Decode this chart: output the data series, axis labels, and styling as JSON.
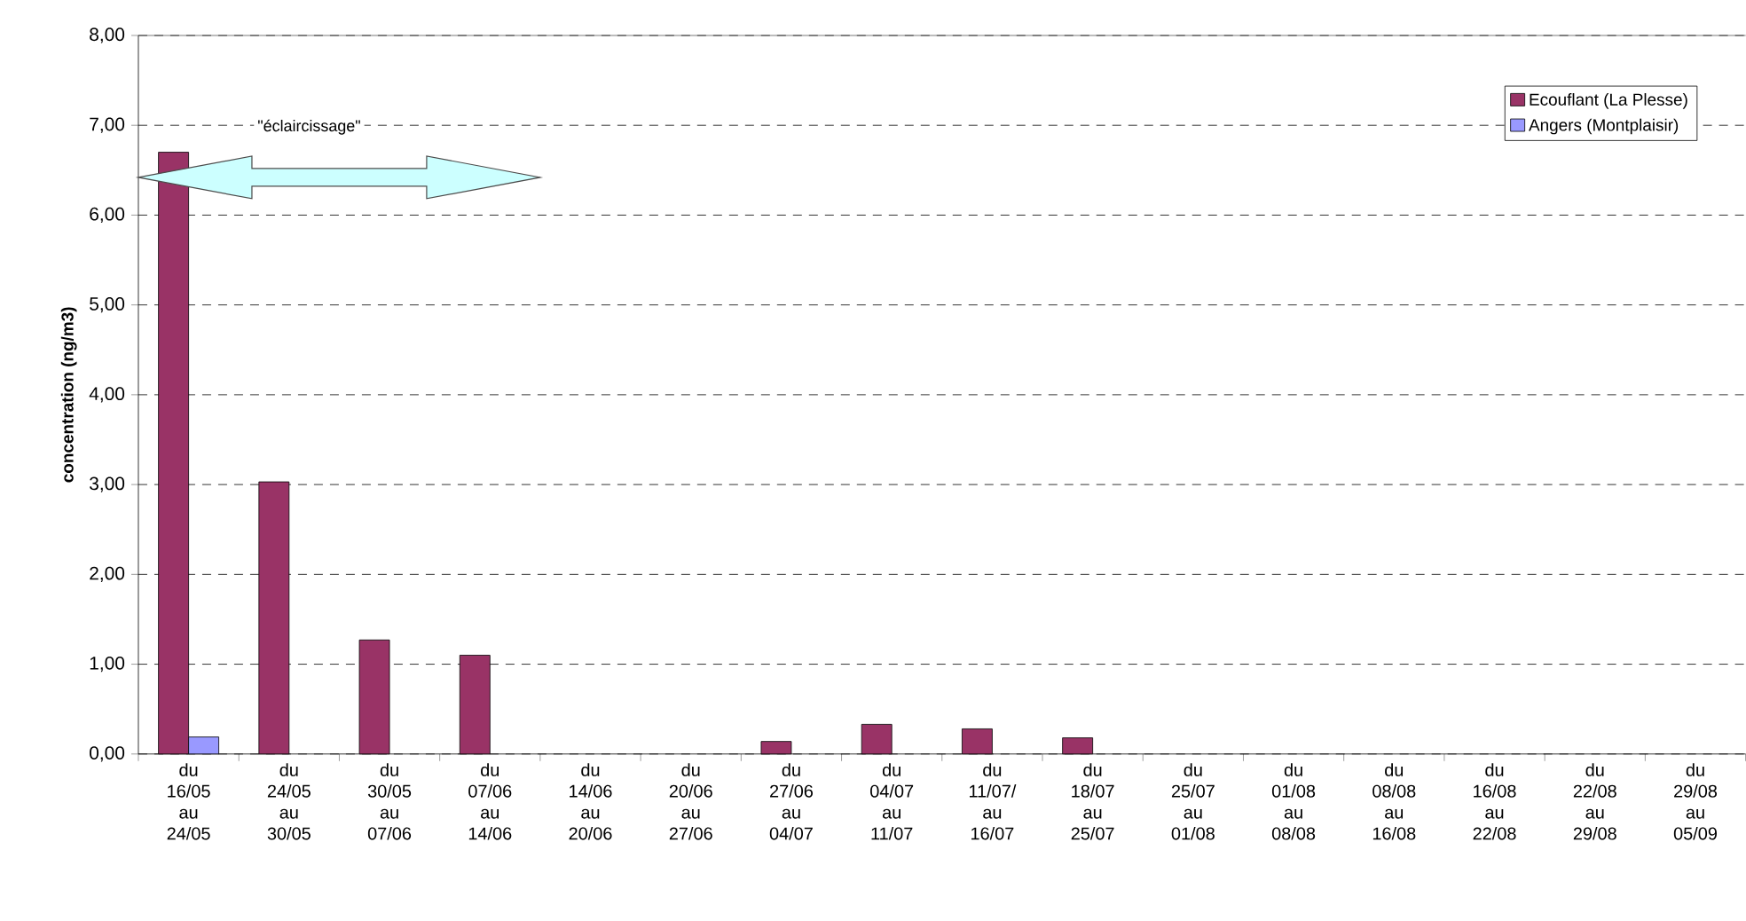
{
  "chart_data": {
    "type": "bar",
    "ylabel": "concentration (ng/m3)",
    "categories": [
      "du 16/05 au 24/05",
      "du 24/05 au 30/05",
      "du 30/05 au 07/06",
      "du 07/06 au 14/06",
      "du 14/06 au 20/06",
      "du 20/06 au 27/06",
      "du 27/06 au 04/07",
      "du 04/07 au 11/07",
      "du 11/07/ au 16/07",
      "du 18/07 au 25/07",
      "du 25/07 au 01/08",
      "du 01/08 au 08/08",
      "du 08/08 au 16/08",
      "du 16/08 au 22/08",
      "du 22/08 au 29/08",
      "du 29/08 au 05/09"
    ],
    "series": [
      {
        "name": "Ecouflant (La Plesse)",
        "color": "#993366",
        "values": [
          6.7,
          3.03,
          1.27,
          1.1,
          null,
          null,
          0.14,
          0.33,
          0.28,
          0.18,
          null,
          null,
          null,
          null,
          null,
          null
        ]
      },
      {
        "name": "Angers (Montplaisir)",
        "color": "#9999ff",
        "values": [
          0.19,
          null,
          null,
          null,
          null,
          null,
          null,
          null,
          null,
          null,
          null,
          null,
          null,
          null,
          null,
          null
        ]
      }
    ],
    "ylim": [
      0,
      8
    ],
    "yticks": [
      {
        "value": 0,
        "label": "0,00"
      },
      {
        "value": 1,
        "label": "1,00"
      },
      {
        "value": 2,
        "label": "2,00"
      },
      {
        "value": 3,
        "label": "3,00"
      },
      {
        "value": 4,
        "label": "4,00"
      },
      {
        "value": 5,
        "label": "5,00"
      },
      {
        "value": 6,
        "label": "6,00"
      },
      {
        "value": 7,
        "label": "7,00"
      },
      {
        "value": 8,
        "label": "8,00"
      }
    ],
    "grid": "y",
    "legend": "top right",
    "annotations": [
      "\"éclaircissage\""
    ]
  }
}
